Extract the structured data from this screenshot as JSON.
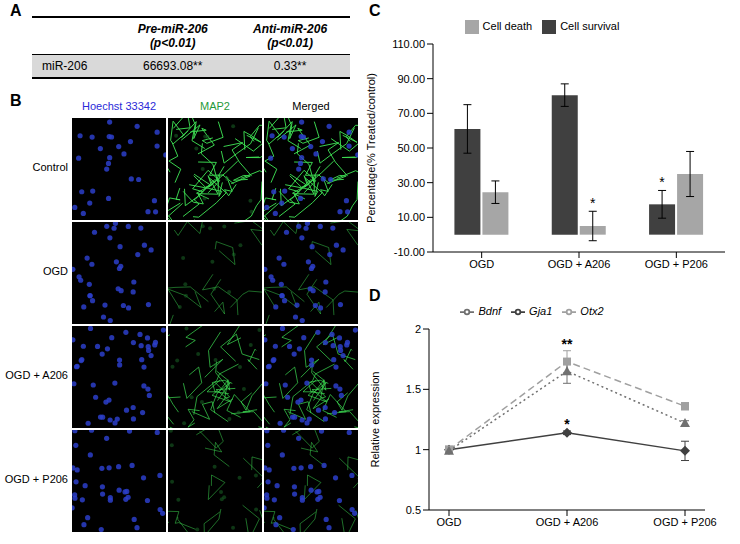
{
  "panel_a": {
    "panel": "A",
    "table": {
      "header": [
        "Pre-miR-206",
        "Anti-miR-206"
      ],
      "subheader": [
        "(p<0.01)",
        "(p<0.01)"
      ],
      "rows": [
        {
          "label": "miR-206",
          "cells": [
            "66693.08**",
            "0.33**"
          ]
        }
      ]
    }
  },
  "panel_b": {
    "panel": "B",
    "columns": [
      {
        "label": "Hoechst 33342",
        "color": "#2a2ad8"
      },
      {
        "label": "MAP2",
        "color": "#1f9a3a"
      },
      {
        "label": "Merged",
        "color": "#000000"
      }
    ],
    "rows": [
      "Control",
      "OGD",
      "OGD + A206",
      "OGD + P206"
    ]
  },
  "chart_data": [
    {
      "panel": "C",
      "type": "bar",
      "categories": [
        "OGD",
        "OGD + A206",
        "OGD + P206"
      ],
      "series": [
        {
          "name": "Cell survival",
          "color": "#404040",
          "values": [
            61,
            80.5,
            17.5
          ],
          "errors": [
            14,
            6.5,
            8
          ]
        },
        {
          "name": "Cell death",
          "color": "#a6a6a6",
          "values": [
            24.5,
            5,
            35
          ],
          "errors": [
            6.5,
            8.5,
            13
          ]
        }
      ],
      "y_label": "Percentage(% Treated/control)",
      "ylim": [
        -10,
        110
      ],
      "yticks": [
        {
          "value": -10,
          "label": "-10.00"
        },
        {
          "value": 10,
          "label": "10.00"
        },
        {
          "value": 30,
          "label": "30.00"
        },
        {
          "value": 50,
          "label": "50.00"
        },
        {
          "value": 70,
          "label": "70.00"
        },
        {
          "value": 90,
          "label": "90.00"
        },
        {
          "value": 110,
          "label": "110.00"
        }
      ],
      "legend": "top",
      "annotations": [
        {
          "category": "OGD + A206",
          "series": "Cell death",
          "text": "*"
        },
        {
          "category": "OGD + P206",
          "series": "Cell survival",
          "text": "*"
        }
      ]
    },
    {
      "panel": "D",
      "type": "line",
      "categories": [
        "OGD",
        "OGD + A206",
        "OGD + P206"
      ],
      "series": [
        {
          "name": "Gja1",
          "color": "#404040",
          "marker": "diamond",
          "line_style": "solid",
          "values": [
            1,
            1.14,
            0.99
          ],
          "errors": [
            0.02,
            0.015,
            0.08
          ]
        },
        {
          "name": "Otx2",
          "color": "#a0a0a0",
          "marker": "square",
          "line_style": "dashed",
          "values": [
            1,
            1.73,
            1.36
          ],
          "errors": [
            0.03,
            0.09,
            0.03
          ]
        },
        {
          "name": "Bdnf",
          "color": "#707070",
          "marker": "triangle",
          "line_style": "dotted",
          "values": [
            0.99,
            1.65,
            1.22
          ],
          "errors": [
            0.02,
            0.1,
            0.02
          ]
        }
      ],
      "y_label": "Relative expression",
      "ylim": [
        0.5,
        2
      ],
      "yticks": [
        0.5,
        1,
        1.5,
        2
      ],
      "legend": "top",
      "annotations": [
        {
          "category": "OGD + A206",
          "series": "Otx2",
          "text": "**"
        },
        {
          "category": "OGD + A206",
          "series": "Gja1",
          "text": "*"
        }
      ]
    }
  ]
}
